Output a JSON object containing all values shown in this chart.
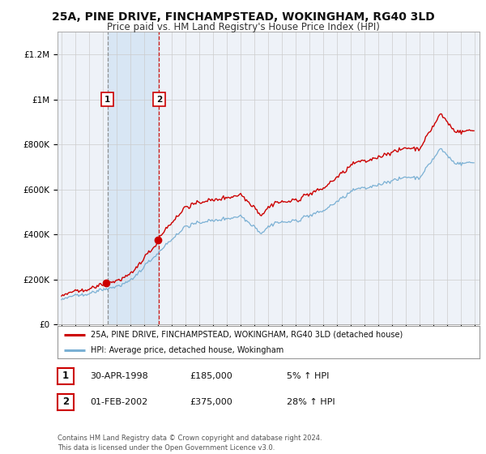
{
  "title1": "25A, PINE DRIVE, FINCHAMPSTEAD, WOKINGHAM, RG40 3LD",
  "title2": "Price paid vs. HM Land Registry's House Price Index (HPI)",
  "legend_line1": "25A, PINE DRIVE, FINCHAMPSTEAD, WOKINGHAM, RG40 3LD (detached house)",
  "legend_line2": "HPI: Average price, detached house, Wokingham",
  "annotation1_date": "30-APR-1998",
  "annotation1_price": "£185,000",
  "annotation1_hpi": "5% ↑ HPI",
  "annotation1_year": 1998.33,
  "annotation1_value": 185000,
  "annotation2_date": "01-FEB-2002",
  "annotation2_price": "£375,000",
  "annotation2_hpi": "28% ↑ HPI",
  "annotation2_year": 2002.08,
  "annotation2_value": 375000,
  "footer": "Contains HM Land Registry data © Crown copyright and database right 2024.\nThis data is licensed under the Open Government Licence v3.0.",
  "price_color": "#cc0000",
  "hpi_color": "#7ab0d4",
  "background_color": "#ffffff",
  "plot_bg_color": "#eef2f8",
  "shade_color": "#d8e6f4",
  "grid_color": "#cccccc",
  "title_fontsize": 10,
  "subtitle_fontsize": 8.5,
  "ylim": [
    0,
    1300000
  ],
  "xlim": [
    1994.7,
    2025.3
  ]
}
